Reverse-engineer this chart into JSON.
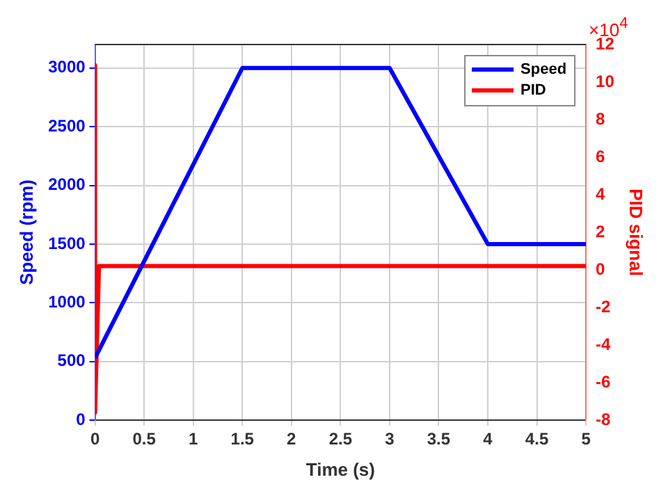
{
  "chart_data": {
    "type": "line",
    "xlabel": "Time (s)",
    "ylabel": "Speed (rpm)",
    "y2label": "PID signal",
    "annotations": [
      "×10$^{4}$"
    ],
    "series": [
      {
        "name": "Speed",
        "color": "#0000ff",
        "x": [
          0,
          1.5,
          3,
          4,
          5
        ],
        "values": [
          530,
          3000,
          3000,
          1500,
          1500
        ]
      },
      {
        "name": "PID",
        "color": "#ff0000",
        "axis": "y2",
        "x": [
          0,
          0,
          0.04,
          5
        ],
        "values": [
          10.9,
          -7.6,
          0.2,
          0.2
        ]
      }
    ],
    "xlim": [
      0,
      5
    ],
    "xticks": [
      0,
      0.5,
      1,
      1.5,
      2,
      2.5,
      3,
      3.5,
      4,
      4.5,
      5
    ],
    "ylim": [
      0,
      3200
    ],
    "yticks": [
      0,
      500,
      1000,
      1500,
      2000,
      2500,
      3000
    ],
    "y2lim": [
      -8,
      12
    ],
    "y2ticks": [
      -8,
      -6,
      -4,
      -2,
      0,
      2,
      4,
      6,
      8,
      10,
      12
    ],
    "grid": true,
    "legend": "top right",
    "marker": "none",
    "line_style": "solid"
  }
}
